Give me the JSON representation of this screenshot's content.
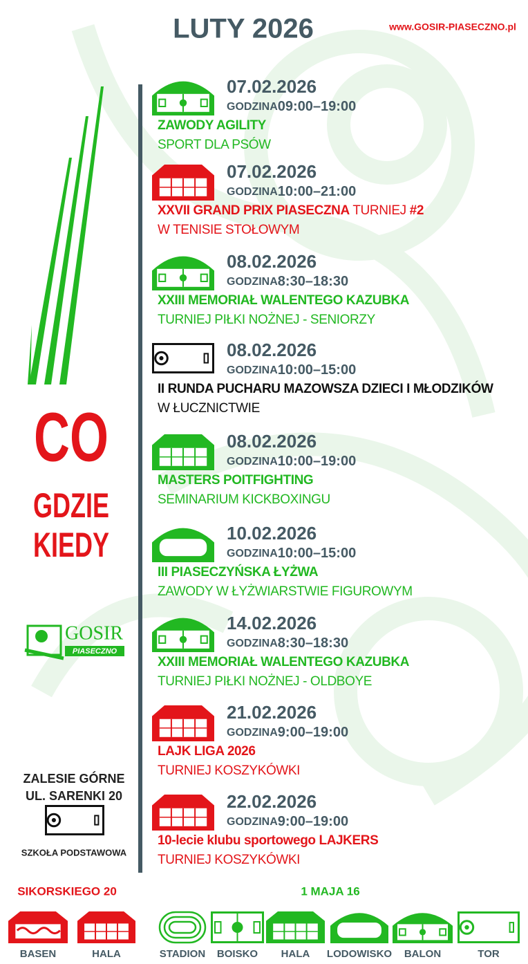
{
  "header": {
    "title": "LUTY 2026",
    "website": "www.GOSIR-PIASECZNO.pl"
  },
  "sidebar": {
    "slogan": [
      "CO",
      "GDZIE",
      "KIEDY"
    ],
    "logo": {
      "name": "GOSIR",
      "city": "PIASECZNO"
    },
    "location": {
      "place": "ZALESIE GÓRNE",
      "address": "UL. SARENKI 20",
      "venue": "SZKOŁA PODSTAWOWA"
    }
  },
  "events": [
    {
      "date": "07.02.2026",
      "time_label": "GODZINA",
      "time": "09:00–19:00",
      "title": [
        {
          "text": "ZAWODY AGILITY",
          "bold": true
        }
      ],
      "subtitle": "SPORT DLA PSÓW",
      "color": "#22b822",
      "icon": "balon"
    },
    {
      "date": "07.02.2026",
      "time_label": "GODZINA",
      "time": "10:00–21:00",
      "title": [
        {
          "text": "XXVII GRAND PRIX PIASECZNA",
          "bold": true
        },
        {
          "text": " TURNIEJ ",
          "bold": false
        },
        {
          "text": "#2",
          "bold": true
        }
      ],
      "subtitle": "W TENISIE STOŁOWYM",
      "color": "#e3151a",
      "icon": "hala"
    },
    {
      "date": "08.02.2026",
      "time_label": "GODZINA",
      "time": "8:30–18:30",
      "title": [
        {
          "text": "XXIII MEMORIAŁ WALENTEGO KAZUBKA",
          "bold": true
        }
      ],
      "subtitle": "TURNIEJ PIŁKI NOŻNEJ - SENIORZY",
      "color": "#22b822",
      "icon": "balon"
    },
    {
      "date": "08.02.2026",
      "time_label": "GODZINA",
      "time": "10:00–15:00",
      "title": [
        {
          "text": "II RUNDA PUCHARU MAZOWSZA DZIECI I MŁODZIKÓW",
          "bold": true
        }
      ],
      "subtitle": "W ŁUCZNICTWIE",
      "color": "#111111",
      "icon": "tor"
    },
    {
      "date": "08.02.2026",
      "time_label": "GODZINA",
      "time": "10:00–19:00",
      "title": [
        {
          "text": "MASTERS POITFIGHTING",
          "bold": true
        }
      ],
      "subtitle": "SEMINARIUM KICKBOXINGU",
      "color": "#22b822",
      "icon": "hala"
    },
    {
      "date": "10.02.2026",
      "time_label": "GODZINA",
      "time": "10:00–15:00",
      "title": [
        {
          "text": "III PIASECZYŃSKA ŁYŻWA",
          "bold": true
        }
      ],
      "subtitle": "ZAWODY W ŁYŻWIARSTWIE FIGUROWYM",
      "color": "#22b822",
      "icon": "lodowisko"
    },
    {
      "date": "14.02.2026",
      "time_label": "GODZINA",
      "time": "8:30–18:30",
      "title": [
        {
          "text": "XXIII MEMORIAŁ WALENTEGO KAZUBKA",
          "bold": true
        }
      ],
      "subtitle": "TURNIEJ PIŁKI NOŻNEJ - OLDBOYE",
      "color": "#22b822",
      "icon": "balon"
    },
    {
      "date": "21.02.2026",
      "time_label": "GODZINA",
      "time": "9:00–19:00",
      "title": [
        {
          "text": "LAJK LIGA 2026",
          "bold": true
        }
      ],
      "subtitle": "TURNIEJ KOSZYKÓWKI",
      "color": "#e3151a",
      "icon": "hala"
    },
    {
      "date": "22.02.2026",
      "time_label": "GODZINA",
      "time": "9:00–19:00",
      "title": [
        {
          "text": "10-lecie klubu sportowego LAJKERS",
          "bold": true
        }
      ],
      "subtitle": "TURNIEJ KOSZYKÓWKI",
      "color": "#e3151a",
      "icon": "hala"
    }
  ],
  "footer": {
    "sikorskiego": {
      "address": "SIKORSKIEGO 20",
      "color": "#e3151a",
      "venues": [
        {
          "label": "BASEN",
          "icon": "basen"
        },
        {
          "label": "HALA",
          "icon": "hala"
        }
      ]
    },
    "maja": {
      "address": "1 MAJA 16",
      "color": "#22b822",
      "venues": [
        {
          "label": "STADION",
          "icon": "stadion"
        },
        {
          "label": "BOISKO",
          "icon": "boisko"
        },
        {
          "label": "HALA",
          "icon": "hala"
        },
        {
          "label": "LODOWISKO",
          "icon": "lodowisko"
        },
        {
          "label": "BALON",
          "icon": "balon"
        },
        {
          "label": "TOR",
          "icon": "tor"
        }
      ]
    }
  }
}
